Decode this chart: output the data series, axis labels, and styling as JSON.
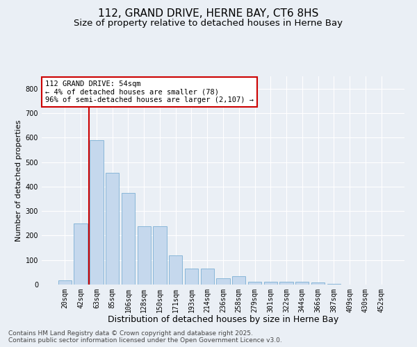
{
  "title": "112, GRAND DRIVE, HERNE BAY, CT6 8HS",
  "subtitle": "Size of property relative to detached houses in Herne Bay",
  "xlabel": "Distribution of detached houses by size in Herne Bay",
  "ylabel": "Number of detached properties",
  "categories": [
    "20sqm",
    "42sqm",
    "63sqm",
    "85sqm",
    "106sqm",
    "128sqm",
    "150sqm",
    "171sqm",
    "193sqm",
    "214sqm",
    "236sqm",
    "258sqm",
    "279sqm",
    "301sqm",
    "322sqm",
    "344sqm",
    "366sqm",
    "387sqm",
    "409sqm",
    "430sqm",
    "452sqm"
  ],
  "values": [
    18,
    248,
    590,
    455,
    375,
    238,
    238,
    118,
    65,
    65,
    25,
    35,
    12,
    12,
    10,
    10,
    8,
    3,
    0,
    0,
    0
  ],
  "bar_color": "#c5d8ed",
  "bar_edge_color": "#7bafd4",
  "vline_color": "#cc0000",
  "vline_pos": 1.5,
  "annotation_text": "112 GRAND DRIVE: 54sqm\n← 4% of detached houses are smaller (78)\n96% of semi-detached houses are larger (2,107) →",
  "annotation_box_color": "#ffffff",
  "annotation_box_edge": "#cc0000",
  "ylim": [
    0,
    850
  ],
  "yticks": [
    0,
    100,
    200,
    300,
    400,
    500,
    600,
    700,
    800
  ],
  "background_color": "#eaeff5",
  "plot_bg_color": "#eaeff5",
  "footer": "Contains HM Land Registry data © Crown copyright and database right 2025.\nContains public sector information licensed under the Open Government Licence v3.0.",
  "title_fontsize": 11,
  "subtitle_fontsize": 9.5,
  "xlabel_fontsize": 9,
  "ylabel_fontsize": 8,
  "tick_fontsize": 7,
  "annotation_fontsize": 7.5,
  "footer_fontsize": 6.5
}
